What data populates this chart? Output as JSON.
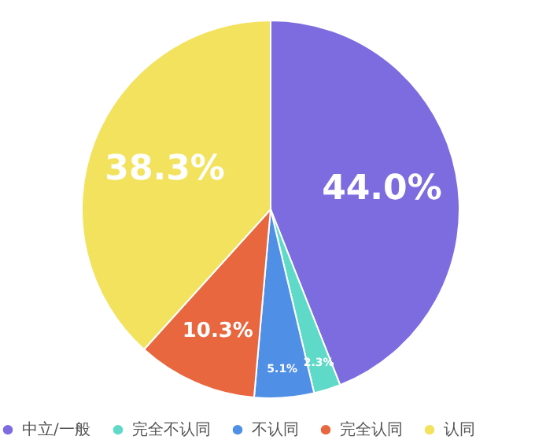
{
  "chart_data": {
    "type": "pie",
    "categories": [
      "中立/一般",
      "完全不认同",
      "不认同",
      "完全认同",
      "认同"
    ],
    "values": [
      44.0,
      2.3,
      5.1,
      10.3,
      38.3
    ],
    "colors": [
      "#7d6ce0",
      "#5fdac8",
      "#4f8fe6",
      "#e8673f",
      "#f2e25e"
    ],
    "value_labels": [
      "44.0%",
      "2.3%",
      "5.1%",
      "10.3%",
      "38.3%"
    ],
    "legend": "bottom"
  }
}
